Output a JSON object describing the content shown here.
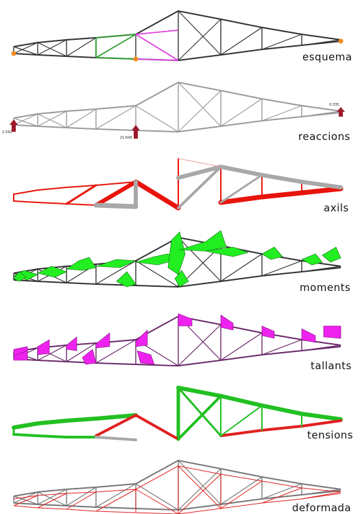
{
  "panels": [
    {
      "key": "esquema",
      "label": "esquema"
    },
    {
      "key": "reaccions",
      "label": "reaccions"
    },
    {
      "key": "axils",
      "label": "axils"
    },
    {
      "key": "moments",
      "label": "moments"
    },
    {
      "key": "tallants",
      "label": "tallants"
    },
    {
      "key": "tensions",
      "label": "tensions"
    },
    {
      "key": "deformada",
      "label": "deformada"
    }
  ],
  "reactions": {
    "left": "2.542",
    "middle": "21.649",
    "right": "0.335"
  },
  "colors": {
    "frame": "#333333",
    "frame_light": "#9a9a9a",
    "green_member": "#2ea02e",
    "magenta_member": "#e040e0",
    "support": "#f08a20",
    "reaction_arrow": "#9c1a2a",
    "axial_red": "#e8140c",
    "axial_grey": "#a8a8a8",
    "moment_fill": "#22ee22",
    "shear_fill": "#ee22ee",
    "tension_green": "#22c022",
    "deform_red": "#e02020"
  }
}
